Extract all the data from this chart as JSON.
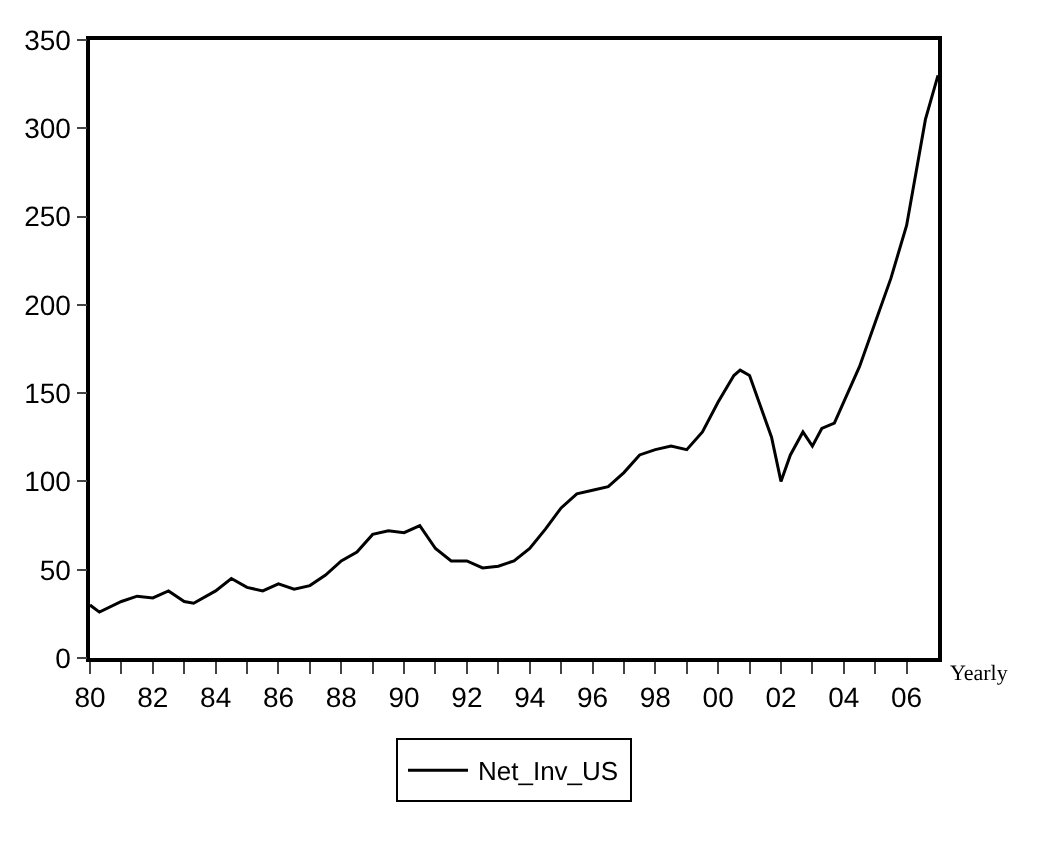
{
  "chart_data": {
    "type": "line",
    "xlabel": "Yearly",
    "x": [
      1980,
      1980.3,
      1981,
      1981.5,
      1982,
      1982.5,
      1983,
      1983.3,
      1984,
      1984.5,
      1985,
      1985.5,
      1986,
      1986.5,
      1987,
      1987.5,
      1988,
      1988.5,
      1989,
      1989.5,
      1990,
      1990.5,
      1991,
      1991.5,
      1992,
      1992.5,
      1993,
      1993.5,
      1994,
      1994.5,
      1995,
      1995.5,
      1996,
      1996.5,
      1997,
      1997.5,
      1998,
      1998.5,
      1999,
      1999.5,
      2000,
      2000.5,
      2000.7,
      2001,
      2001.3,
      2001.7,
      2002,
      2002.3,
      2002.7,
      2003,
      2003.3,
      2003.7,
      2004,
      2004.5,
      2005,
      2005.5,
      2006,
      2006.3,
      2006.6,
      2007
    ],
    "series": [
      {
        "name": "Net_Inv_US",
        "color": "#000000",
        "values": [
          30,
          26,
          32,
          35,
          34,
          38,
          32,
          31,
          38,
          45,
          40,
          38,
          42,
          39,
          41,
          47,
          55,
          60,
          70,
          72,
          71,
          75,
          62,
          55,
          55,
          51,
          52,
          55,
          62,
          73,
          85,
          93,
          95,
          97,
          105,
          115,
          118,
          120,
          118,
          128,
          145,
          160,
          163,
          160,
          145,
          125,
          100,
          115,
          128,
          120,
          130,
          133,
          145,
          165,
          190,
          215,
          245,
          275,
          305,
          330
        ]
      }
    ],
    "xlim": [
      1980,
      2007
    ],
    "ylim": [
      0,
      350
    ],
    "xticks": [
      {
        "value": 1980,
        "label": "80"
      },
      {
        "value": 1981,
        "label": null
      },
      {
        "value": 1982,
        "label": "82"
      },
      {
        "value": 1983,
        "label": null
      },
      {
        "value": 1984,
        "label": "84"
      },
      {
        "value": 1985,
        "label": null
      },
      {
        "value": 1986,
        "label": "86"
      },
      {
        "value": 1987,
        "label": null
      },
      {
        "value": 1988,
        "label": "88"
      },
      {
        "value": 1989,
        "label": null
      },
      {
        "value": 1990,
        "label": "90"
      },
      {
        "value": 1991,
        "label": null
      },
      {
        "value": 1992,
        "label": "92"
      },
      {
        "value": 1993,
        "label": null
      },
      {
        "value": 1994,
        "label": "94"
      },
      {
        "value": 1995,
        "label": null
      },
      {
        "value": 1996,
        "label": "96"
      },
      {
        "value": 1997,
        "label": null
      },
      {
        "value": 1998,
        "label": "98"
      },
      {
        "value": 1999,
        "label": null
      },
      {
        "value": 2000,
        "label": "00"
      },
      {
        "value": 2001,
        "label": null
      },
      {
        "value": 2002,
        "label": "02"
      },
      {
        "value": 2003,
        "label": null
      },
      {
        "value": 2004,
        "label": "04"
      },
      {
        "value": 2005,
        "label": null
      },
      {
        "value": 2006,
        "label": "06"
      }
    ],
    "yticks": [
      0,
      50,
      100,
      150,
      200,
      250,
      300,
      350
    ],
    "legend": "bottom",
    "marker": "none",
    "line_style": "solid"
  }
}
